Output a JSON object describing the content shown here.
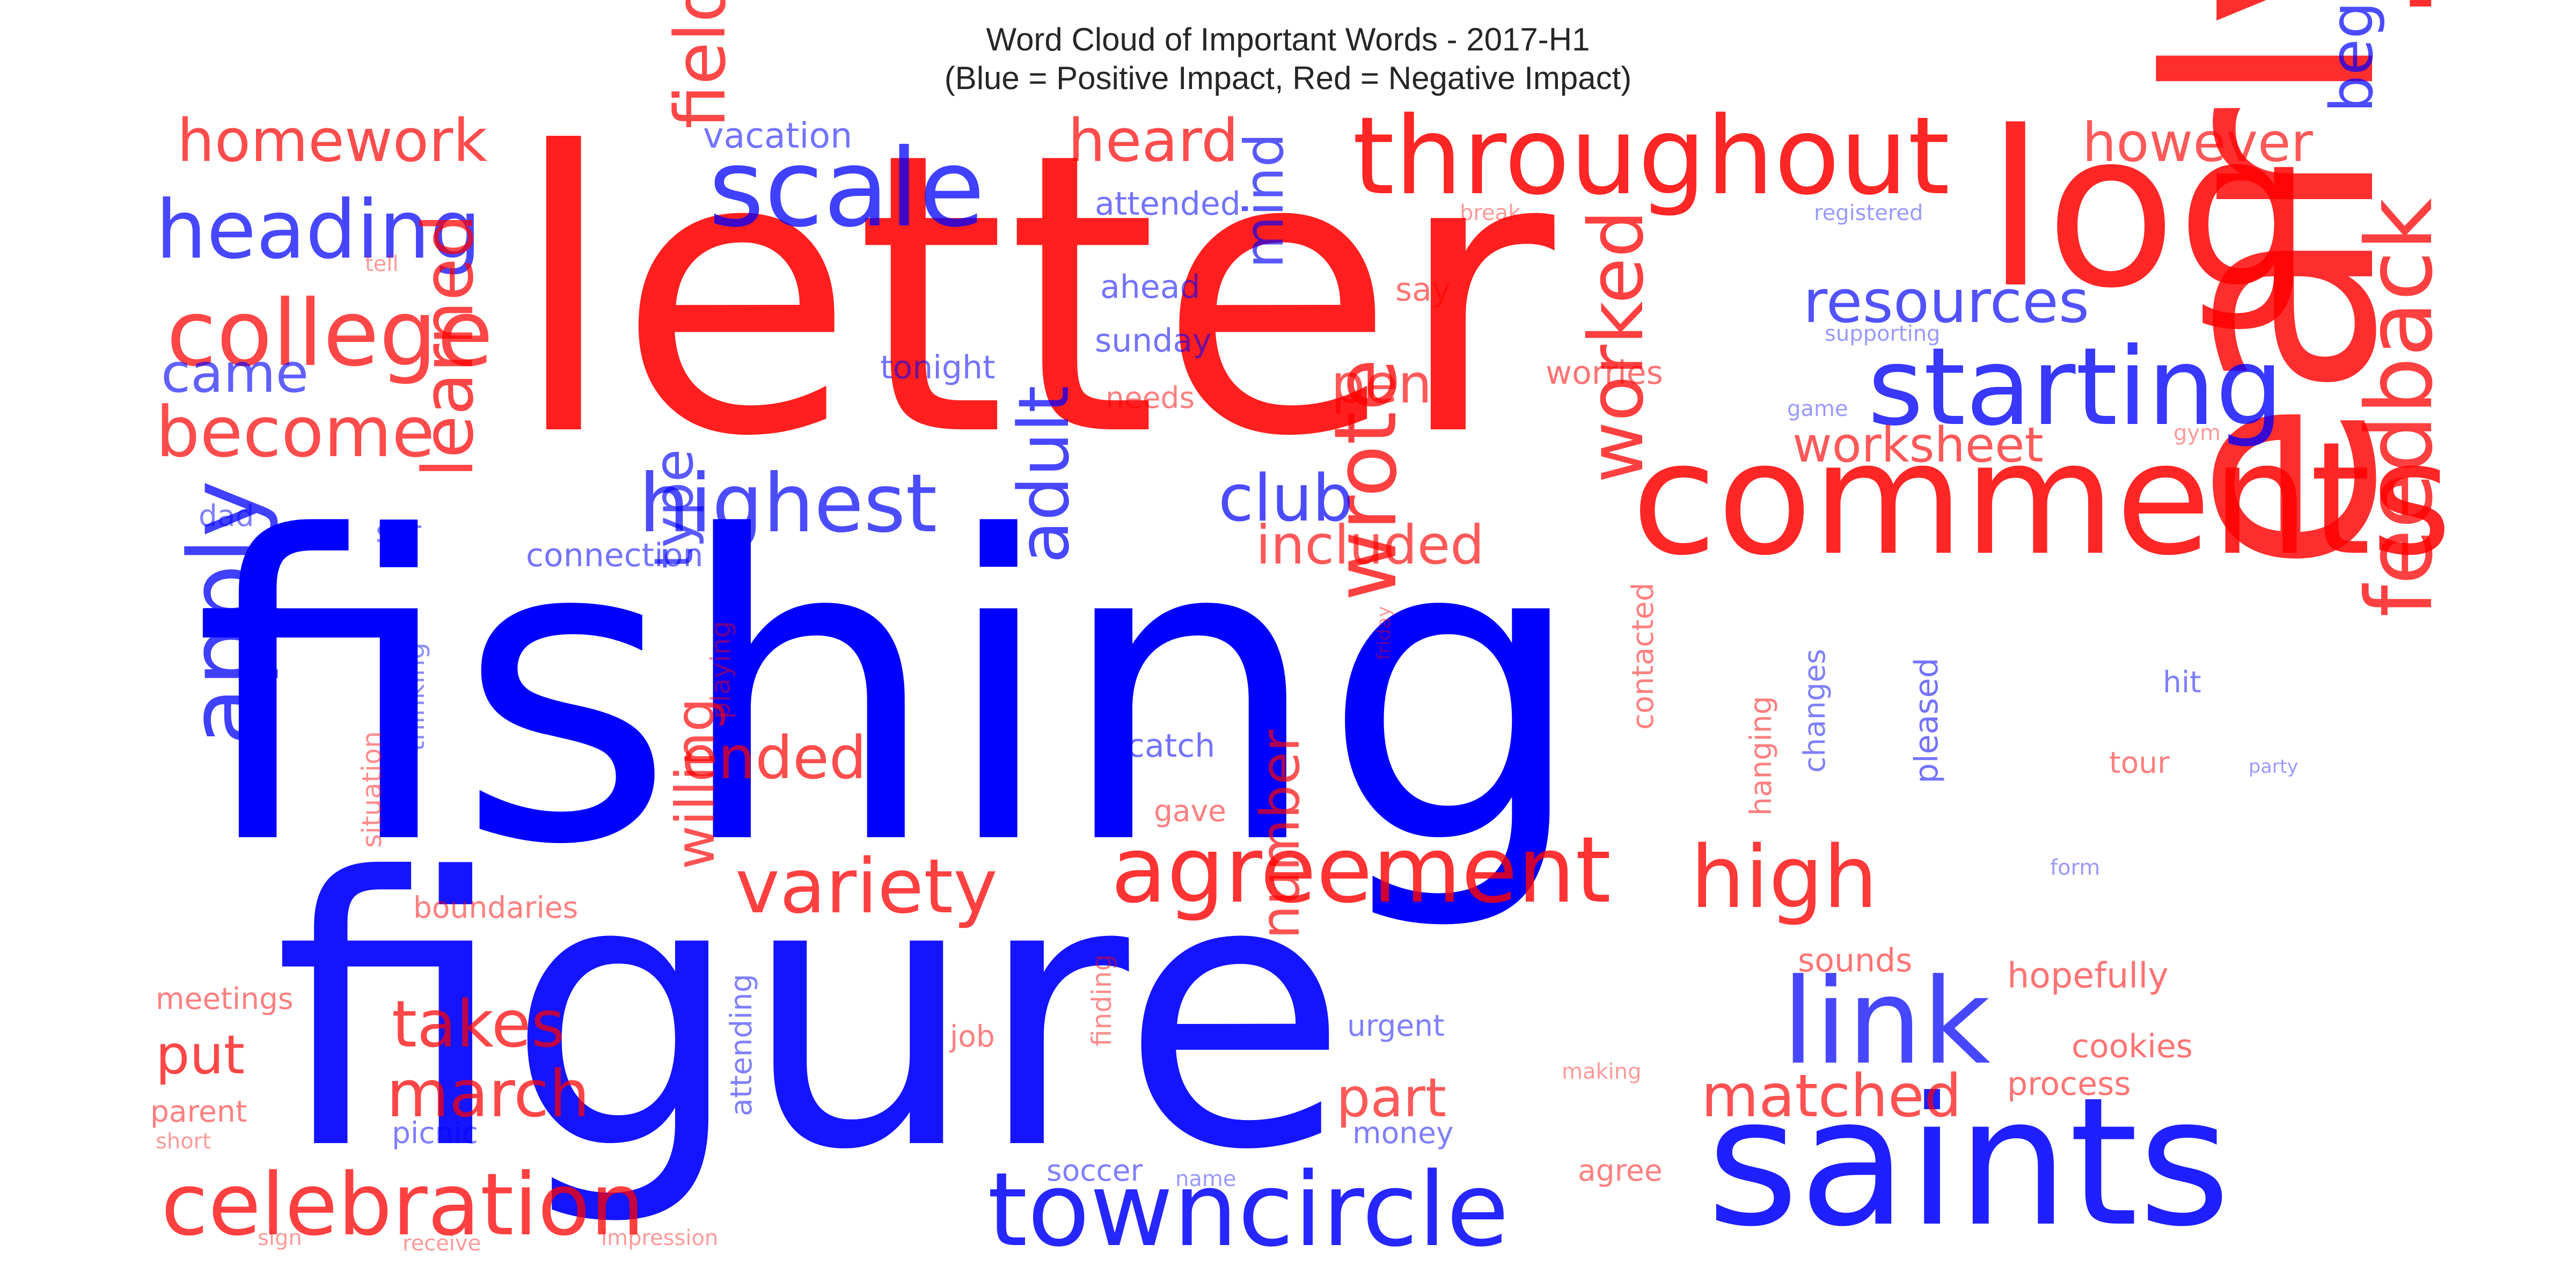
{
  "title": {
    "line1": "Word Cloud of Important Words - 2017-H1",
    "line2": "(Blue = Positive Impact, Red = Negative Impact)"
  },
  "colors": {
    "positive": "#0000ff",
    "negative": "#ff0000"
  },
  "chart_data": {
    "type": "wordcloud",
    "legend": "Blue = Positive Impact, Red = Negative Impact",
    "words": [
      {
        "text": "fishing",
        "impact": "positive",
        "weight": 1.0
      },
      {
        "text": "figure",
        "impact": "positive",
        "weight": 0.92
      },
      {
        "text": "letter",
        "impact": "negative",
        "weight": 0.9
      },
      {
        "text": "saints",
        "impact": "positive",
        "weight": 0.52
      },
      {
        "text": "log",
        "impact": "negative",
        "weight": 0.5
      },
      {
        "text": "early",
        "impact": "negative",
        "weight": 0.45
      },
      {
        "text": "comments",
        "impact": "negative",
        "weight": 0.45
      },
      {
        "text": "throughout",
        "impact": "negative",
        "weight": 0.4
      },
      {
        "text": "towncircle",
        "impact": "positive",
        "weight": 0.36
      },
      {
        "text": "agreement",
        "impact": "negative",
        "weight": 0.33
      },
      {
        "text": "scale",
        "impact": "positive",
        "weight": 0.32
      },
      {
        "text": "apply",
        "impact": "positive",
        "weight": 0.32
      },
      {
        "text": "feedback",
        "impact": "negative",
        "weight": 0.31
      },
      {
        "text": "starting",
        "impact": "positive",
        "weight": 0.3
      },
      {
        "text": "link",
        "impact": "positive",
        "weight": 0.3
      },
      {
        "text": "celebration",
        "impact": "negative",
        "weight": 0.29
      },
      {
        "text": "heading",
        "impact": "positive",
        "weight": 0.27
      },
      {
        "text": "college",
        "impact": "negative",
        "weight": 0.26
      },
      {
        "text": "highest",
        "impact": "positive",
        "weight": 0.26
      },
      {
        "text": "wrote",
        "impact": "negative",
        "weight": 0.26
      },
      {
        "text": "high",
        "impact": "negative",
        "weight": 0.25
      },
      {
        "text": "variety",
        "impact": "negative",
        "weight": 0.24
      },
      {
        "text": "worked",
        "impact": "negative",
        "weight": 0.24
      },
      {
        "text": "field",
        "impact": "negative",
        "weight": 0.22
      },
      {
        "text": "adult",
        "impact": "positive",
        "weight": 0.22
      },
      {
        "text": "become",
        "impact": "negative",
        "weight": 0.21
      },
      {
        "text": "heard",
        "impact": "negative",
        "weight": 0.2
      },
      {
        "text": "learned",
        "impact": "negative",
        "weight": 0.21
      },
      {
        "text": "takes",
        "impact": "negative",
        "weight": 0.2
      },
      {
        "text": "march",
        "impact": "negative",
        "weight": 0.2
      },
      {
        "text": "begin",
        "impact": "positive",
        "weight": 0.2
      },
      {
        "text": "club",
        "impact": "positive",
        "weight": 0.19
      },
      {
        "text": "homework",
        "impact": "negative",
        "weight": 0.18
      },
      {
        "text": "however",
        "impact": "negative",
        "weight": 0.18
      },
      {
        "text": "resources",
        "impact": "positive",
        "weight": 0.18
      },
      {
        "text": "came",
        "impact": "positive",
        "weight": 0.17
      },
      {
        "text": "put",
        "impact": "negative",
        "weight": 0.18
      },
      {
        "text": "ended",
        "impact": "negative",
        "weight": 0.18
      },
      {
        "text": "matched",
        "impact": "negative",
        "weight": 0.18
      },
      {
        "text": "included",
        "impact": "negative",
        "weight": 0.17
      },
      {
        "text": "mind",
        "impact": "positive",
        "weight": 0.16
      },
      {
        "text": "worksheet",
        "impact": "negative",
        "weight": 0.16
      },
      {
        "text": "number",
        "impact": "negative",
        "weight": 0.16
      },
      {
        "text": "part",
        "impact": "negative",
        "weight": 0.16
      },
      {
        "text": "willing",
        "impact": "negative",
        "weight": 0.16
      },
      {
        "text": "type",
        "impact": "positive",
        "weight": 0.15
      },
      {
        "text": "pen",
        "impact": "negative",
        "weight": 0.14
      },
      {
        "text": "vacation",
        "impact": "positive",
        "weight": 0.11
      },
      {
        "text": "attended",
        "impact": "positive",
        "weight": 0.1
      },
      {
        "text": "ahead",
        "impact": "positive",
        "weight": 0.1
      },
      {
        "text": "sunday",
        "impact": "positive",
        "weight": 0.1
      },
      {
        "text": "tonight",
        "impact": "positive",
        "weight": 0.1
      },
      {
        "text": "say",
        "impact": "negative",
        "weight": 0.1
      },
      {
        "text": "worries",
        "impact": "negative",
        "weight": 0.1
      },
      {
        "text": "needs",
        "impact": "negative",
        "weight": 0.09
      },
      {
        "text": "connection",
        "impact": "positive",
        "weight": 0.1
      },
      {
        "text": "dad",
        "impact": "positive",
        "weight": 0.09
      },
      {
        "text": "sor",
        "impact": "positive",
        "weight": 0.09
      },
      {
        "text": "catch",
        "impact": "positive",
        "weight": 0.1
      },
      {
        "text": "gave",
        "impact": "negative",
        "weight": 0.09
      },
      {
        "text": "boundaries",
        "impact": "negative",
        "weight": 0.09
      },
      {
        "text": "meetings",
        "impact": "negative",
        "weight": 0.09
      },
      {
        "text": "parent",
        "impact": "negative",
        "weight": 0.09
      },
      {
        "text": "picnic",
        "impact": "positive",
        "weight": 0.09
      },
      {
        "text": "short",
        "impact": "negative",
        "weight": 0.06
      },
      {
        "text": "sign",
        "impact": "negative",
        "weight": 0.06
      },
      {
        "text": "receive",
        "impact": "negative",
        "weight": 0.06
      },
      {
        "text": "impression",
        "impact": "negative",
        "weight": 0.06
      },
      {
        "text": "name",
        "impact": "positive",
        "weight": 0.06
      },
      {
        "text": "soccer",
        "impact": "positive",
        "weight": 0.09
      },
      {
        "text": "money",
        "impact": "positive",
        "weight": 0.09
      },
      {
        "text": "urgent",
        "impact": "positive",
        "weight": 0.1
      },
      {
        "text": "job",
        "impact": "negative",
        "weight": 0.09
      },
      {
        "text": "agree",
        "impact": "negative",
        "weight": 0.09
      },
      {
        "text": "making",
        "impact": "negative",
        "weight": 0.06
      },
      {
        "text": "sounds",
        "impact": "negative",
        "weight": 0.1
      },
      {
        "text": "hopefully",
        "impact": "negative",
        "weight": 0.1
      },
      {
        "text": "cookies",
        "impact": "negative",
        "weight": 0.1
      },
      {
        "text": "process",
        "impact": "negative",
        "weight": 0.1
      },
      {
        "text": "tour",
        "impact": "negative",
        "weight": 0.09
      },
      {
        "text": "hit",
        "impact": "positive",
        "weight": 0.09
      },
      {
        "text": "party",
        "impact": "positive",
        "weight": 0.06
      },
      {
        "text": "form",
        "impact": "positive",
        "weight": 0.06
      },
      {
        "text": "break",
        "impact": "negative",
        "weight": 0.06
      },
      {
        "text": "registered",
        "impact": "positive",
        "weight": 0.06
      },
      {
        "text": "supporting",
        "impact": "positive",
        "weight": 0.06
      },
      {
        "text": "game",
        "impact": "positive",
        "weight": 0.06
      },
      {
        "text": "gym",
        "impact": "negative",
        "weight": 0.06
      },
      {
        "text": "tell",
        "impact": "negative",
        "weight": 0.06
      },
      {
        "text": "situation",
        "impact": "negative",
        "weight": 0.08
      },
      {
        "text": "thinking",
        "impact": "positive",
        "weight": 0.08
      },
      {
        "text": "playing",
        "impact": "negative",
        "weight": 0.08
      },
      {
        "text": "attending",
        "impact": "positive",
        "weight": 0.09
      },
      {
        "text": "finding",
        "impact": "negative",
        "weight": 0.08
      },
      {
        "text": "friday",
        "impact": "negative",
        "weight": 0.06
      },
      {
        "text": "contacted",
        "impact": "negative",
        "weight": 0.09
      },
      {
        "text": "hanging",
        "impact": "negative",
        "weight": 0.09
      },
      {
        "text": "changes",
        "impact": "positive",
        "weight": 0.09
      },
      {
        "text": "pleased",
        "impact": "positive",
        "weight": 0.1
      }
    ]
  }
}
